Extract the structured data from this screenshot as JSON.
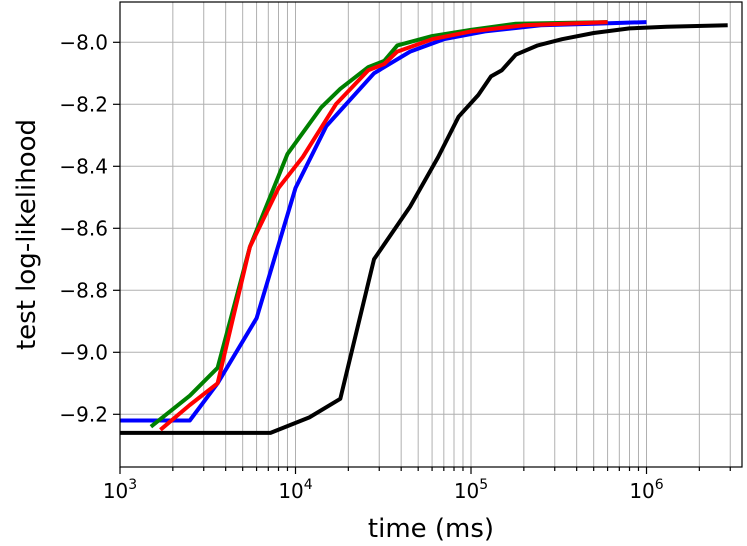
{
  "chart_data": {
    "type": "line",
    "xlabel": "time (ms)",
    "ylabel": "test log-likelihood",
    "xscale": "log",
    "xlim": [
      1000,
      3500000
    ],
    "ylim": [
      -9.37,
      -7.87
    ],
    "grid": true,
    "x_major_ticks": [
      1000,
      10000,
      100000,
      1000000
    ],
    "x_tick_base": "10",
    "x_tick_exponents": [
      "3",
      "4",
      "5",
      "6"
    ],
    "y_ticks": [
      -9.2,
      -9.0,
      -8.8,
      -8.6,
      -8.4,
      -8.2,
      -8.0
    ],
    "y_tick_labels": [
      "−9.2",
      "−9.0",
      "−8.8",
      "−8.6",
      "−8.4",
      "−8.2",
      "−8.0"
    ],
    "series": [
      {
        "color": "#000000",
        "points": [
          [
            1000,
            -9.26
          ],
          [
            7200,
            -9.26
          ],
          [
            12000,
            -9.21
          ],
          [
            18000,
            -9.15
          ],
          [
            28000,
            -8.7
          ],
          [
            45000,
            -8.53
          ],
          [
            65000,
            -8.37
          ],
          [
            85000,
            -8.24
          ],
          [
            110000,
            -8.17
          ],
          [
            130000,
            -8.11
          ],
          [
            150000,
            -8.09
          ],
          [
            180000,
            -8.04
          ],
          [
            240000,
            -8.01
          ],
          [
            330000,
            -7.99
          ],
          [
            500000,
            -7.97
          ],
          [
            800000,
            -7.955
          ],
          [
            1300000,
            -7.95
          ],
          [
            2900000,
            -7.945
          ]
        ]
      },
      {
        "color": "#0000ff",
        "points": [
          [
            1000,
            -9.22
          ],
          [
            2500,
            -9.22
          ],
          [
            3600,
            -9.1
          ],
          [
            6000,
            -8.89
          ],
          [
            10000,
            -8.47
          ],
          [
            15000,
            -8.27
          ],
          [
            28000,
            -8.1
          ],
          [
            45000,
            -8.03
          ],
          [
            70000,
            -7.99
          ],
          [
            120000,
            -7.965
          ],
          [
            250000,
            -7.945
          ],
          [
            500000,
            -7.94
          ],
          [
            1000000,
            -7.935
          ]
        ]
      },
      {
        "color": "#008000",
        "points": [
          [
            1500,
            -9.24
          ],
          [
            2500,
            -9.14
          ],
          [
            3600,
            -9.05
          ],
          [
            5500,
            -8.66
          ],
          [
            9000,
            -8.36
          ],
          [
            14000,
            -8.21
          ],
          [
            18000,
            -8.15
          ],
          [
            26000,
            -8.08
          ],
          [
            32000,
            -8.06
          ],
          [
            38000,
            -8.01
          ],
          [
            60000,
            -7.98
          ],
          [
            100000,
            -7.96
          ],
          [
            180000,
            -7.94
          ],
          [
            600000,
            -7.935
          ]
        ]
      },
      {
        "color": "#ff0000",
        "points": [
          [
            1700,
            -9.25
          ],
          [
            2500,
            -9.17
          ],
          [
            3600,
            -9.1
          ],
          [
            5500,
            -8.66
          ],
          [
            8000,
            -8.47
          ],
          [
            11000,
            -8.37
          ],
          [
            17000,
            -8.2
          ],
          [
            26000,
            -8.09
          ],
          [
            32000,
            -8.07
          ],
          [
            38000,
            -8.03
          ],
          [
            60000,
            -7.99
          ],
          [
            100000,
            -7.965
          ],
          [
            200000,
            -7.945
          ],
          [
            600000,
            -7.935
          ]
        ]
      }
    ]
  }
}
